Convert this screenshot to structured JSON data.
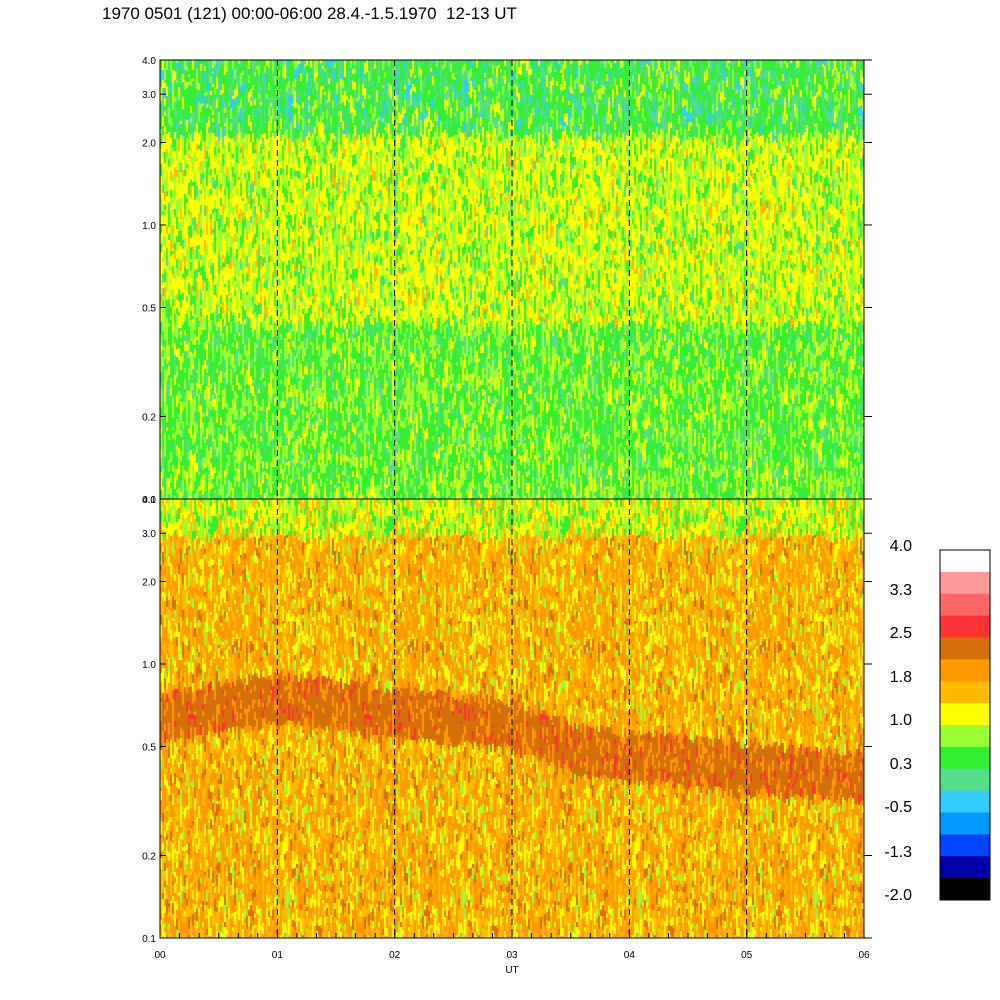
{
  "header": {
    "title": "1970 0501 (121) 00:00-06:00 28.4.-1.5.1970  12-13 UT"
  },
  "chart_data": [
    {
      "type": "heatmap",
      "panel": "upper",
      "scale": "log",
      "ylim": [
        0.1,
        4.0
      ],
      "yticks": [
        "4.0",
        "3.0",
        "2.0",
        "1.0",
        "0.5",
        "0.2",
        "0.1"
      ],
      "y_values": [
        4.0,
        3.0,
        2.0,
        1.0,
        0.5,
        0.2,
        0.1
      ],
      "xlim": [
        0,
        6
      ],
      "vertical_dashed_lines_at": [
        1,
        2,
        3,
        4,
        5
      ],
      "dominant_levels_by_y": [
        {
          "y_range": [
            2.0,
            4.0
          ],
          "level": 0.0
        },
        {
          "y_range": [
            0.5,
            2.0
          ],
          "level": 1.0
        },
        {
          "y_range": [
            0.1,
            0.5
          ],
          "level": 0.5
        }
      ]
    },
    {
      "type": "heatmap",
      "panel": "lower",
      "scale": "log",
      "ylim": [
        0.1,
        4.0
      ],
      "yticks": [
        "4.0",
        "3.0",
        "2.0",
        "1.0",
        "0.5",
        "0.2",
        "0.1"
      ],
      "y_values": [
        4.0,
        3.0,
        2.0,
        1.0,
        0.5,
        0.2,
        0.1
      ],
      "xlim": [
        0,
        6
      ],
      "xlabel": "UT",
      "xticks": [
        "00",
        "01",
        "02",
        "03",
        "04",
        "05",
        "06"
      ],
      "x_values": [
        0,
        1,
        2,
        3,
        4,
        5,
        6
      ],
      "vertical_dashed_lines_at": [
        1,
        2,
        3,
        4,
        5
      ],
      "band_center_y_by_x": [
        {
          "x": 0.0,
          "y": 0.65
        },
        {
          "x": 1.0,
          "y": 0.78
        },
        {
          "x": 2.0,
          "y": 0.68
        },
        {
          "x": 3.0,
          "y": 0.62
        },
        {
          "x": 3.5,
          "y": 0.5
        },
        {
          "x": 4.5,
          "y": 0.45
        },
        {
          "x": 6.0,
          "y": 0.4
        }
      ]
    }
  ],
  "colorbar": {
    "labels": [
      "4.0",
      "3.3",
      "2.5",
      "1.8",
      "1.0",
      "0.3",
      "-0.5",
      "-1.3",
      "-2.0"
    ],
    "colors": [
      "#ffffff",
      "#ff9999",
      "#ff6666",
      "#ff3333",
      "#d4700a",
      "#ff9900",
      "#ffbb00",
      "#ffff00",
      "#99ff33",
      "#33ee33",
      "#55dd88",
      "#33ccff",
      "#0099ff",
      "#0044ff",
      "#0000aa",
      "#000000"
    ]
  }
}
